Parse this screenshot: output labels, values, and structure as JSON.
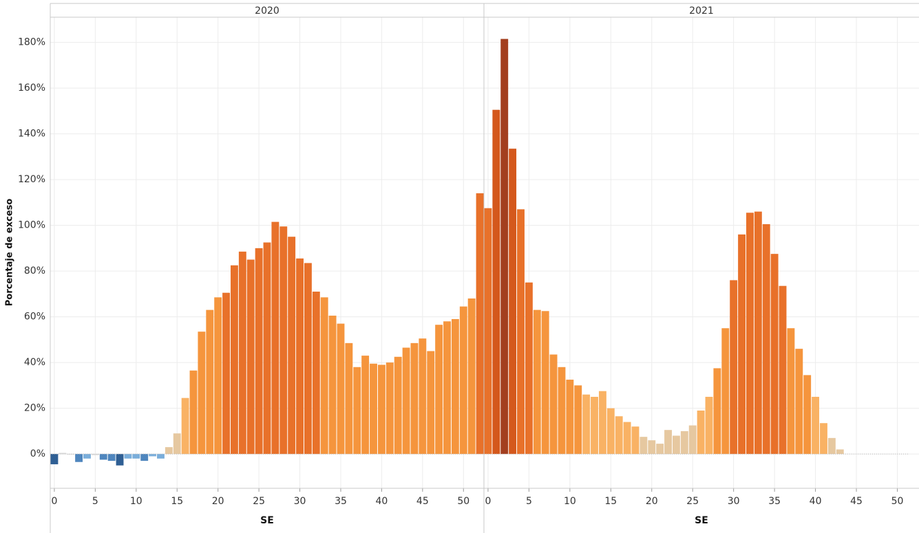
{
  "chart_data": {
    "type": "bar",
    "y_label": "Porcentaje de exceso",
    "ylim": [
      -15,
      191
    ],
    "yticks": [
      {
        "value": 0,
        "label": "0%"
      },
      {
        "value": 20,
        "label": "20%"
      },
      {
        "value": 40,
        "label": "40%"
      },
      {
        "value": 60,
        "label": "60%"
      },
      {
        "value": 80,
        "label": "80%"
      },
      {
        "value": 100,
        "label": "100%"
      },
      {
        "value": 120,
        "label": "120%"
      },
      {
        "value": 140,
        "label": "140%"
      },
      {
        "value": 160,
        "label": "160%"
      },
      {
        "value": 180,
        "label": "180%"
      }
    ],
    "grid": true,
    "panels": [
      {
        "title": "2020",
        "x_label": "SE",
        "xlim": [
          -0.5,
          52.5
        ],
        "xticks": [
          0,
          5,
          10,
          15,
          20,
          25,
          30,
          35,
          40,
          45,
          50
        ],
        "x": [
          0,
          1,
          2,
          3,
          4,
          5,
          6,
          7,
          8,
          9,
          10,
          11,
          12,
          13,
          14,
          15,
          16,
          17,
          18,
          19,
          20,
          21,
          22,
          23,
          24,
          25,
          26,
          27,
          28,
          29,
          30,
          31,
          32,
          33,
          34,
          35,
          36,
          37,
          38,
          39,
          40,
          41,
          42,
          43,
          44,
          45,
          46,
          47,
          48,
          49,
          50,
          51,
          52
        ],
        "values": [
          -4.5,
          0.5,
          -0.3,
          -3.5,
          -2,
          -0.5,
          -2.5,
          -3,
          -5,
          -2,
          -2,
          -3,
          -1,
          -2,
          3,
          9,
          24.5,
          36.5,
          53.5,
          63,
          68.5,
          70.5,
          82.5,
          88.5,
          85,
          90,
          92.5,
          101.5,
          99.5,
          95,
          85.5,
          83.5,
          71,
          68.5,
          60.5,
          57,
          48.5,
          38,
          43,
          39.5,
          39,
          40,
          42.5,
          46.5,
          48.5,
          50.5,
          45,
          56.5,
          58,
          59,
          64.5,
          68,
          114
        ],
        "colors": [
          "#2f5f94",
          "#d9d9d9",
          "#d9d9d9",
          "#4f86be",
          "#7aaedb",
          "#d9d9d9",
          "#4f86be",
          "#4f86be",
          "#2f5f94",
          "#7aaedb",
          "#7aaedb",
          "#4f86be",
          "#7aaedb",
          "#7aaedb",
          "#e6c8a0",
          "#e6c8a0",
          "#f9b264",
          "#f5953d",
          "#f5953d",
          "#f5953d",
          "#f5953d",
          "#e8712a",
          "#e8712a",
          "#e8712a",
          "#e8712a",
          "#e8712a",
          "#e8712a",
          "#e8712a",
          "#e8712a",
          "#e8712a",
          "#e8712a",
          "#e8712a",
          "#e8712a",
          "#f5953d",
          "#f5953d",
          "#f5953d",
          "#f5953d",
          "#f5953d",
          "#f5953d",
          "#f5953d",
          "#f5953d",
          "#f5953d",
          "#f5953d",
          "#f5953d",
          "#f5953d",
          "#f5953d",
          "#f5953d",
          "#f5953d",
          "#f5953d",
          "#f5953d",
          "#f5953d",
          "#f5953d",
          "#e8712a"
        ]
      },
      {
        "title": "2021",
        "x_label": "SE",
        "xlim": [
          -0.5,
          52.65
        ],
        "xticks": [
          0,
          5,
          10,
          15,
          20,
          25,
          30,
          35,
          40,
          45,
          50
        ],
        "x": [
          0,
          1,
          2,
          3,
          4,
          5,
          6,
          7,
          8,
          9,
          10,
          11,
          12,
          13,
          14,
          15,
          16,
          17,
          18,
          19,
          20,
          21,
          22,
          23,
          24,
          25,
          26,
          27,
          28,
          29,
          30,
          31,
          32,
          33,
          34,
          35,
          36,
          37,
          38,
          39,
          40,
          41,
          42,
          43
        ],
        "values": [
          107.5,
          150.5,
          181.5,
          133.5,
          107,
          75,
          63,
          62.5,
          43.5,
          38,
          32.5,
          30,
          26,
          25,
          27.5,
          20,
          16.5,
          14,
          12,
          7.5,
          6,
          4.5,
          10.5,
          8,
          10,
          12.5,
          19,
          25,
          37.5,
          55,
          76,
          96,
          105.5,
          106,
          100.5,
          87.5,
          73.5,
          55,
          46,
          34.5,
          25,
          13.5,
          7,
          2
        ],
        "colors": [
          "#e8712a",
          "#d4581c",
          "#a33f1f",
          "#d4581c",
          "#e8712a",
          "#e8712a",
          "#f5953d",
          "#f5953d",
          "#f5953d",
          "#f5953d",
          "#f5953d",
          "#f5953d",
          "#f9b264",
          "#f9b264",
          "#f9b264",
          "#f9b264",
          "#f9b264",
          "#f9b264",
          "#f9b264",
          "#e6c8a0",
          "#e6c8a0",
          "#e6c8a0",
          "#e6c8a0",
          "#e6c8a0",
          "#e6c8a0",
          "#e6c8a0",
          "#f9b264",
          "#f9b264",
          "#f5953d",
          "#f5953d",
          "#e8712a",
          "#e8712a",
          "#e8712a",
          "#e8712a",
          "#e8712a",
          "#e8712a",
          "#e8712a",
          "#f5953d",
          "#f5953d",
          "#f5953d",
          "#f9b264",
          "#f9b264",
          "#e6c8a0",
          "#e6c8a0"
        ]
      }
    ]
  }
}
